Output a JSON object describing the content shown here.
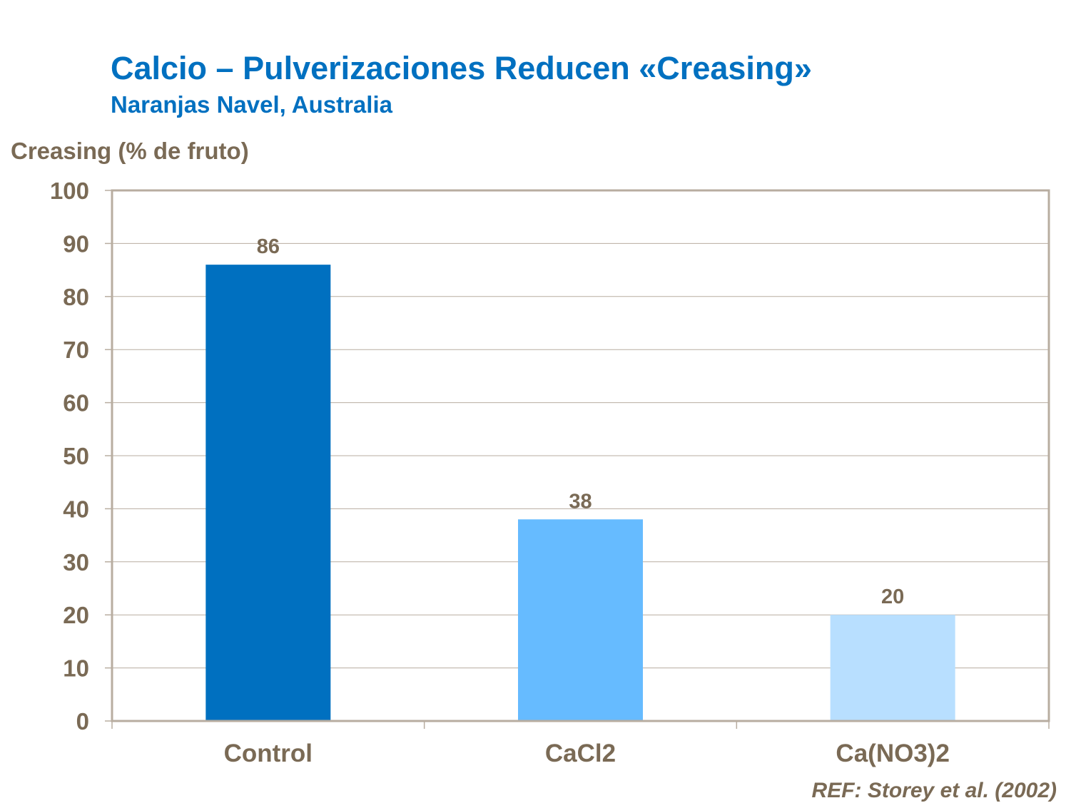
{
  "chart_data": {
    "type": "bar",
    "title": "Calcio – Pulverizaciones Reducen «Creasing»",
    "subtitle": "Naranjas Navel, Australia",
    "ylabel": "Creasing (% de fruto)",
    "xlabel": "",
    "categories": [
      "Control",
      "CaCl2",
      "Ca(NO3)2"
    ],
    "values": [
      86,
      38,
      20
    ],
    "data_labels": [
      "86",
      "38",
      "20"
    ],
    "bar_colors": [
      "#0070c0",
      "#66bbff",
      "#b8dfff"
    ],
    "ylim": [
      0,
      100
    ],
    "yticks": [
      0,
      10,
      20,
      30,
      40,
      50,
      60,
      70,
      80,
      90,
      100
    ],
    "grid": true,
    "legend": "none",
    "annotation": "REF: Storey et al. (2002)"
  }
}
